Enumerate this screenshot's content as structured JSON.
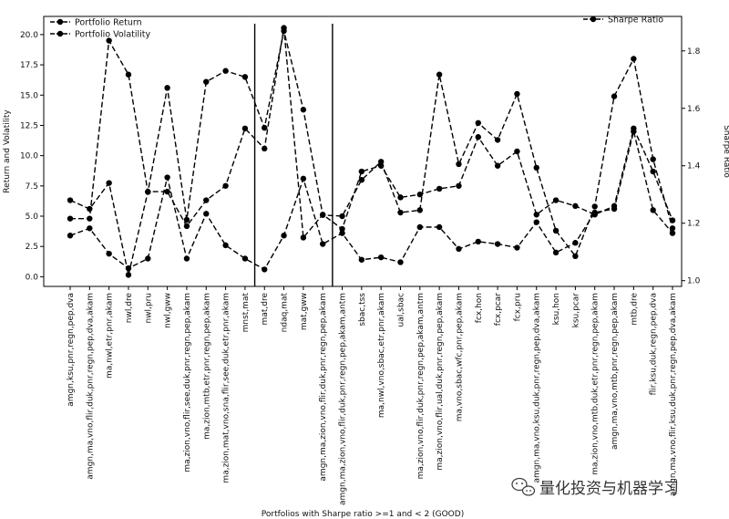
{
  "chart_data": {
    "type": "line",
    "xlabel": "Portfolios with Sharpe ratio >=1 and < 2 (GOOD)",
    "ylabel": "Return and Volatility",
    "y2label": "Sharpe Ratio",
    "ylim": [
      -0.8,
      21.5
    ],
    "y2lim": [
      0.98,
      1.92
    ],
    "yticks": [
      "0.0",
      "2.5",
      "5.0",
      "7.5",
      "10.0",
      "12.5",
      "15.0",
      "17.5",
      "20.0"
    ],
    "y2ticks": [
      "1.0",
      "1.2",
      "1.4",
      "1.6",
      "1.8"
    ],
    "legend_left": "upper-left",
    "legend_right": "upper-right",
    "vertical_lines_at_index": [
      9,
      13
    ],
    "categories": [
      "amgn,ksu,pnr,regn,pep,dva",
      "amgn,ma,vno,flir,duk,pnr,regn,pep,dva,akam",
      "ma,nwl,etr,pnr,akam",
      "nwl,dre",
      "nwl,pru",
      "nwl,gww",
      "ma,zion,vno,flir,see,duk,pnr,regn,pep,akam",
      "ma,zion,mtb,etr,pnr,regn,pep,akam",
      "ma,zion,mat,vno,sna,flir,see,duk,etr,pnr,akam",
      "mnst,mat",
      "mat,dre",
      "ndaq,mat",
      "mat,gww",
      "amgn,ma,zion,vno,flir,duk,pnr,regn,pep,akam",
      "amgn,ma,zion,vno,flir,duk,pnr,regn,pep,akam,antm",
      "sbac,tss",
      "ma,nwl,vno,sbac,etr,pnr,akam",
      "ual,sbac",
      "ma,zion,vno,flir,duk,pnr,regn,pep,akam,antm",
      "ma,zion,vno,flir,ual,duk,pnr,regn,pep,akam",
      "ma,vno,sbac,wfc,pnr,pep,akam",
      "fcx,hon",
      "fcx,pcar",
      "fcx,pru",
      "amgn,ma,vno,ksu,duk,pnr,regn,pep,dva,akam",
      "ksu,hon",
      "ksu,pcar",
      "ma,zion,vno,mtb,duk,etr,pnr,regn,pep,akam",
      "amgn,ma,vno,mtb,pnr,regn,pep,akam",
      "mtb,dre",
      "flir,ksu,duk,regn,pep,dva",
      "amgn,ma,vno,flir,ksu,duk,pnr,regn,pep,dva,akam"
    ],
    "series": [
      {
        "name": "Portfolio Return",
        "axis": "left",
        "marker": "circle",
        "values": [
          4.8,
          4.8,
          19.5,
          16.7,
          7.0,
          15.6,
          4.7,
          16.1,
          17.0,
          16.5,
          12.3,
          20.3,
          13.8,
          5.1,
          5.0,
          8.0,
          9.5,
          5.3,
          5.5,
          16.7,
          9.3,
          12.7,
          11.3,
          15.1,
          9.0,
          3.8,
          1.7,
          5.8,
          14.9,
          18.0,
          9.7,
          4.0
        ]
      },
      {
        "name": "Portfolio Volatility",
        "axis": "left",
        "marker": "circle",
        "values": [
          3.4,
          4.0,
          1.9,
          0.7,
          1.5,
          8.2,
          1.5,
          5.2,
          2.6,
          1.5,
          0.6,
          3.4,
          8.1,
          2.7,
          3.6,
          1.4,
          1.6,
          1.2,
          4.1,
          4.1,
          2.3,
          2.9,
          2.7,
          2.4,
          4.5,
          2.0,
          2.8,
          5.3,
          5.6,
          12.0,
          5.5,
          3.6
        ]
      },
      {
        "name": "Sharpe Ratio",
        "axis": "right",
        "marker": "circle",
        "values": [
          1.28,
          1.25,
          1.34,
          1.02,
          1.31,
          1.31,
          1.19,
          1.28,
          1.33,
          1.53,
          1.46,
          1.88,
          1.15,
          1.23,
          1.18,
          1.38,
          1.4,
          1.29,
          1.3,
          1.32,
          1.33,
          1.5,
          1.4,
          1.45,
          1.23,
          1.28,
          1.26,
          1.23,
          1.26,
          1.53,
          1.38,
          1.21
        ]
      }
    ]
  },
  "watermark": {
    "text": "量化投资与机器学习",
    "icon": "wechat-icon"
  }
}
